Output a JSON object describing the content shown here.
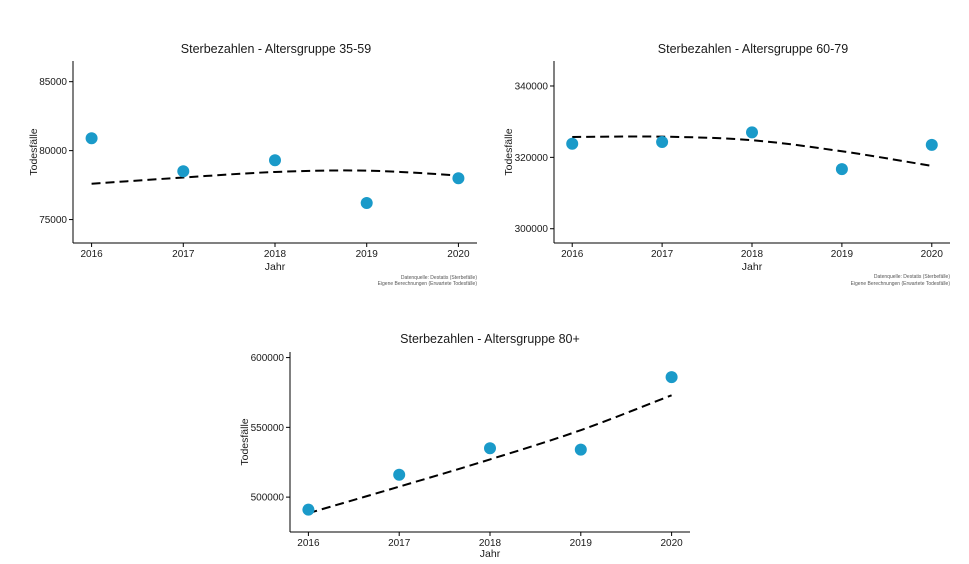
{
  "chart_data": [
    {
      "type": "scatter",
      "title": "Sterbezahlen - Altersgruppe 35-59",
      "xlabel": "Jahr",
      "ylabel": "Todesfälle",
      "x": [
        2016,
        2017,
        2018,
        2019,
        2020
      ],
      "ylim": [
        73300,
        86500
      ],
      "yticks": [
        75000,
        80000,
        85000
      ],
      "series": [
        {
          "type": "scatter",
          "values": [
            80900,
            78500,
            79300,
            76200,
            78000
          ],
          "color": "#1a9ac9"
        },
        {
          "type": "line",
          "style": "dashed",
          "values": [
            77600,
            78050,
            78450,
            78550,
            78200
          ],
          "color": "#000000"
        }
      ],
      "source": [
        "Datenquelle: Destatis (Sterbefälle)",
        "Eigene Berechnungen (Erwartete Todesfälle)"
      ],
      "grid": false
    },
    {
      "type": "scatter",
      "title": "Sterbezahlen - Altersgruppe 60-79",
      "xlabel": "Jahr",
      "ylabel": "Todesfälle",
      "x": [
        2016,
        2017,
        2018,
        2019,
        2020
      ],
      "ylim": [
        296000,
        347000
      ],
      "yticks": [
        300000,
        320000,
        340000
      ],
      "series": [
        {
          "type": "scatter",
          "values": [
            323800,
            324300,
            327000,
            316700,
            323500
          ],
          "color": "#1a9ac9"
        },
        {
          "type": "line",
          "style": "dashed",
          "values": [
            325700,
            325800,
            324800,
            321700,
            317600
          ],
          "color": "#000000"
        }
      ],
      "source": [
        "Datenquelle: Destatis (Sterbefälle)",
        "Eigene Berechnungen (Erwartete Todesfälle)"
      ],
      "grid": false
    },
    {
      "type": "scatter",
      "title": "Sterbezahlen - Altersgruppe 80+",
      "xlabel": "Jahr",
      "ylabel": "Todesfälle",
      "x": [
        2016,
        2017,
        2018,
        2019,
        2020
      ],
      "ylim": [
        475000,
        604000
      ],
      "yticks": [
        500000,
        550000,
        600000
      ],
      "series": [
        {
          "type": "scatter",
          "values": [
            491000,
            516000,
            535000,
            534000,
            586000
          ],
          "color": "#1a9ac9"
        },
        {
          "type": "line",
          "style": "dashed",
          "values": [
            488500,
            507500,
            527000,
            548000,
            573000
          ],
          "color": "#000000"
        }
      ],
      "grid": false
    }
  ]
}
